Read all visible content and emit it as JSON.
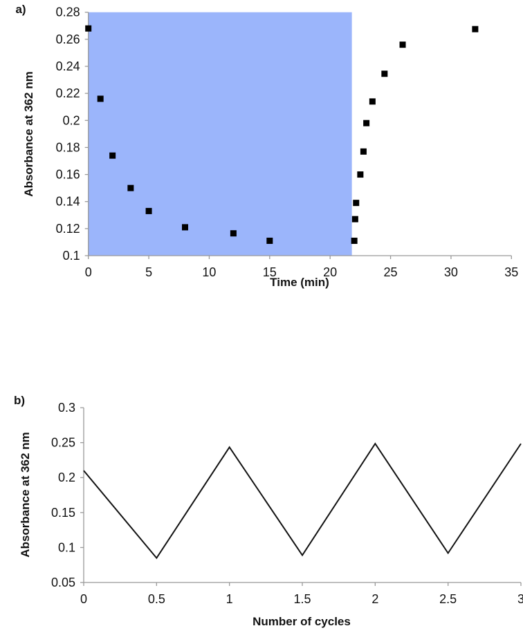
{
  "chart_data": [
    {
      "panel_label": "a)",
      "type": "scatter",
      "xlabel": "Time (min)",
      "ylabel": "Absorbance at 362 nm",
      "xlim": [
        0,
        35
      ],
      "ylim": [
        0.1,
        0.28
      ],
      "xticks": [
        "0",
        "5",
        "10",
        "15",
        "20",
        "25",
        "30",
        "35"
      ],
      "yticks": [
        "0.1",
        "0.12",
        "0.14",
        "0.16",
        "0.18",
        "0.2",
        "0.22",
        "0.24",
        "0.26",
        "0.28"
      ],
      "shaded_region": {
        "x_from": 0,
        "x_to": 21.8,
        "color": "#9bb5fb"
      },
      "marker_color": "#000000",
      "x": [
        0,
        1,
        2,
        3.5,
        5,
        8,
        12,
        15,
        22.0,
        22.07,
        22.15,
        22.5,
        22.76,
        23.0,
        23.5,
        24.5,
        26.0,
        32.0
      ],
      "y": [
        0.268,
        0.216,
        0.174,
        0.15,
        0.133,
        0.121,
        0.1165,
        0.111,
        0.111,
        0.127,
        0.139,
        0.16,
        0.177,
        0.198,
        0.214,
        0.2345,
        0.256,
        0.2675
      ],
      "grid": false
    },
    {
      "panel_label": "b)",
      "type": "line",
      "xlabel": "Number of cycles",
      "ylabel": "Absorbance at 362 nm",
      "xlim": [
        0,
        3
      ],
      "ylim": [
        0.05,
        0.3
      ],
      "xticks": [
        "0",
        "0.5",
        "1",
        "1.5",
        "2",
        "2.5",
        "3"
      ],
      "yticks": [
        "0.05",
        "0.1",
        "0.15",
        "0.2",
        "0.25",
        "0.3"
      ],
      "line_color": "#111111",
      "x": [
        0,
        0.5,
        1,
        1.5,
        2,
        2.5,
        3
      ],
      "y": [
        0.21,
        0.085,
        0.2435,
        0.089,
        0.2485,
        0.092,
        0.2485
      ],
      "grid": false
    }
  ]
}
